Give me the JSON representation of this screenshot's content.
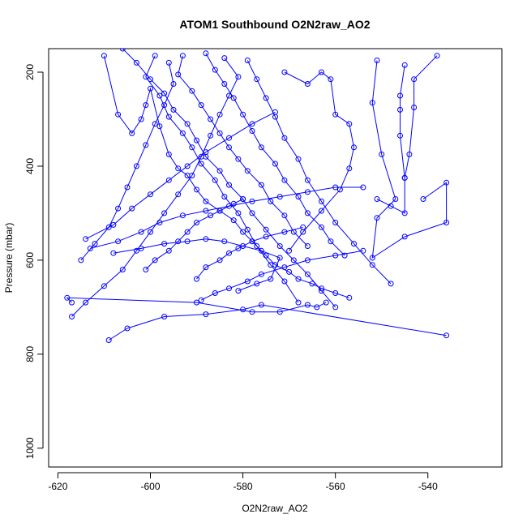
{
  "chart_data": {
    "type": "line",
    "title": "ATOM1 Southbound O2N2raw_AO2",
    "xlabel": "O2N2raw_AO2",
    "ylabel": "Pressure (mbar)",
    "xlim": [
      -622,
      -524
    ],
    "ylim": [
      1040,
      150
    ],
    "x_ticks": [
      -620,
      -600,
      -580,
      -560,
      -540
    ],
    "y_ticks": [
      200,
      400,
      600,
      800,
      1000
    ],
    "x_tick_labels": [
      "-620",
      "-600",
      "-580",
      "-560",
      "-540"
    ],
    "y_tick_labels": [
      "200",
      "400",
      "600",
      "800",
      "1000"
    ],
    "grid": false,
    "colors": {
      "series": "#0000ff",
      "axis": "#000000",
      "background": "#ffffff"
    },
    "series": [
      {
        "values": [
          [
            -610,
            165
          ],
          [
            -607,
            290
          ],
          [
            -604,
            330
          ],
          [
            -602,
            300
          ],
          [
            -601,
            270
          ],
          [
            -600,
            235
          ],
          [
            -598,
            315
          ],
          [
            -596,
            375
          ],
          [
            -594,
            405
          ],
          [
            -592,
            420
          ],
          [
            -590,
            450
          ],
          [
            -588,
            475
          ],
          [
            -585,
            495
          ],
          [
            -582,
            515
          ],
          [
            -580,
            540
          ],
          [
            -578,
            560
          ],
          [
            -575,
            590
          ],
          [
            -573,
            610
          ],
          [
            -570,
            625
          ],
          [
            -568,
            640
          ],
          [
            -565,
            650
          ],
          [
            -563,
            660
          ],
          [
            -560,
            670
          ],
          [
            -557,
            680
          ]
        ]
      },
      {
        "values": [
          [
            -606,
            150
          ],
          [
            -603,
            180
          ],
          [
            -600,
            215
          ],
          [
            -597,
            245
          ],
          [
            -595,
            280
          ],
          [
            -592,
            310
          ],
          [
            -590,
            345
          ],
          [
            -588,
            380
          ],
          [
            -585,
            410
          ],
          [
            -583,
            440
          ],
          [
            -580,
            470
          ],
          [
            -578,
            500
          ],
          [
            -575,
            535
          ],
          [
            -572,
            570
          ],
          [
            -569,
            600
          ],
          [
            -566,
            630
          ],
          [
            -563,
            665
          ],
          [
            -560,
            700
          ]
        ]
      },
      {
        "values": [
          [
            -599,
            165
          ],
          [
            -601,
            210
          ],
          [
            -598,
            250
          ],
          [
            -596,
            295
          ],
          [
            -593,
            330
          ],
          [
            -591,
            360
          ],
          [
            -589,
            395
          ],
          [
            -586,
            430
          ],
          [
            -584,
            465
          ],
          [
            -581,
            500
          ],
          [
            -579,
            535
          ],
          [
            -577,
            570
          ],
          [
            -574,
            610
          ],
          [
            -571,
            645
          ],
          [
            -568,
            690
          ]
        ]
      },
      {
        "values": [
          [
            -593,
            165
          ],
          [
            -594,
            205
          ],
          [
            -591,
            240
          ],
          [
            -589,
            270
          ],
          [
            -587,
            300
          ],
          [
            -585,
            330
          ],
          [
            -583,
            360
          ],
          [
            -581,
            385
          ],
          [
            -579,
            410
          ],
          [
            -576,
            440
          ],
          [
            -574,
            475
          ],
          [
            -571,
            505
          ],
          [
            -569,
            540
          ],
          [
            -566,
            570
          ]
        ]
      },
      {
        "values": [
          [
            -588,
            160
          ],
          [
            -586,
            195
          ],
          [
            -584,
            225
          ],
          [
            -582,
            255
          ],
          [
            -580,
            290
          ],
          [
            -578,
            325
          ],
          [
            -576,
            360
          ],
          [
            -573,
            395
          ],
          [
            -571,
            430
          ],
          [
            -568,
            465
          ],
          [
            -566,
            500
          ],
          [
            -563,
            530
          ],
          [
            -561,
            560
          ],
          [
            -558,
            590
          ]
        ]
      },
      {
        "values": [
          [
            -584,
            170
          ],
          [
            -581,
            210
          ],
          [
            -583,
            250
          ],
          [
            -585,
            290
          ],
          [
            -587,
            335
          ],
          [
            -589,
            380
          ],
          [
            -591,
            420
          ],
          [
            -594,
            460
          ],
          [
            -597,
            500
          ],
          [
            -600,
            540
          ],
          [
            -603,
            580
          ],
          [
            -606,
            620
          ],
          [
            -610,
            655
          ],
          [
            -614,
            690
          ],
          [
            -617,
            720
          ]
        ]
      },
      {
        "values": [
          [
            -596,
            180
          ],
          [
            -595,
            225
          ],
          [
            -597,
            270
          ],
          [
            -599,
            310
          ],
          [
            -601,
            355
          ],
          [
            -603,
            400
          ],
          [
            -605,
            445
          ],
          [
            -607,
            490
          ],
          [
            -609,
            530
          ],
          [
            -612,
            565
          ],
          [
            -615,
            600
          ]
        ]
      },
      {
        "values": [
          [
            -579,
            175
          ],
          [
            -577,
            215
          ],
          [
            -575,
            255
          ],
          [
            -573,
            295
          ],
          [
            -571,
            340
          ],
          [
            -568,
            385
          ],
          [
            -566,
            430
          ],
          [
            -563,
            475
          ],
          [
            -560,
            520
          ],
          [
            -556,
            565
          ],
          [
            -552,
            610
          ],
          [
            -548,
            650
          ]
        ]
      },
      {
        "values": [
          [
            -571,
            200
          ],
          [
            -566,
            225
          ],
          [
            -563,
            200
          ],
          [
            -561,
            215
          ],
          [
            -560,
            290
          ],
          [
            -557,
            310
          ],
          [
            -556,
            360
          ],
          [
            -557,
            405
          ],
          [
            -559,
            450
          ],
          [
            -563,
            495
          ],
          [
            -567,
            540
          ],
          [
            -570,
            580
          ]
        ]
      },
      {
        "values": [
          [
            -551,
            175
          ],
          [
            -552,
            265
          ],
          [
            -550,
            375
          ],
          [
            -547,
            470
          ],
          [
            -551,
            510
          ],
          [
            -552,
            595
          ],
          [
            -545,
            550
          ],
          [
            -536,
            520
          ],
          [
            -536,
            435
          ],
          [
            -541,
            470
          ]
        ]
      },
      {
        "values": [
          [
            -545,
            185
          ],
          [
            -546,
            250
          ],
          [
            -546,
            280
          ],
          [
            -546,
            335
          ],
          [
            -545,
            425
          ],
          [
            -545,
            500
          ],
          [
            -548,
            485
          ],
          [
            -551,
            470
          ]
        ]
      },
      {
        "values": [
          [
            -538,
            165
          ],
          [
            -543,
            215
          ],
          [
            -543,
            275
          ],
          [
            -544,
            375
          ],
          [
            -545,
            425
          ]
        ]
      },
      {
        "values": [
          [
            -617,
            690
          ],
          [
            -618,
            680
          ],
          [
            -590,
            690
          ],
          [
            -578,
            710
          ],
          [
            -572,
            710
          ],
          [
            -566,
            695
          ],
          [
            -564,
            700
          ],
          [
            -562,
            690
          ]
        ]
      },
      {
        "values": [
          [
            -609,
            770
          ],
          [
            -605,
            745
          ],
          [
            -597,
            720
          ],
          [
            -588,
            715
          ],
          [
            -580,
            705
          ],
          [
            -576,
            695
          ],
          [
            -536,
            760
          ]
        ]
      },
      {
        "values": [
          [
            -613,
            575
          ],
          [
            -607,
            560
          ],
          [
            -602,
            540
          ],
          [
            -598,
            520
          ],
          [
            -593,
            505
          ],
          [
            -588,
            495
          ],
          [
            -583,
            485
          ],
          [
            -578,
            475
          ],
          [
            -572,
            465
          ],
          [
            -566,
            455
          ],
          [
            -560,
            445
          ],
          [
            -554,
            445
          ]
        ]
      },
      {
        "values": [
          [
            -614,
            555
          ],
          [
            -608,
            525
          ],
          [
            -604,
            490
          ],
          [
            -600,
            460
          ],
          [
            -596,
            430
          ],
          [
            -592,
            400
          ],
          [
            -588,
            370
          ],
          [
            -583,
            340
          ],
          [
            -578,
            310
          ],
          [
            -573,
            285
          ]
        ]
      },
      {
        "values": [
          [
            -608,
            585
          ],
          [
            -602,
            575
          ],
          [
            -597,
            565
          ],
          [
            -592,
            560
          ],
          [
            -588,
            555
          ],
          [
            -584,
            560
          ],
          [
            -580,
            570
          ],
          [
            -576,
            580
          ],
          [
            -572,
            595
          ],
          [
            -574,
            640
          ],
          [
            -577,
            650
          ],
          [
            -581,
            665
          ]
        ]
      },
      {
        "values": [
          [
            -590,
            640
          ],
          [
            -588,
            615
          ],
          [
            -585,
            600
          ],
          [
            -583,
            585
          ],
          [
            -581,
            575
          ],
          [
            -578,
            560
          ],
          [
            -575,
            550
          ],
          [
            -571,
            540
          ],
          [
            -567,
            530
          ]
        ]
      },
      {
        "values": [
          [
            -601,
            620
          ],
          [
            -599,
            600
          ],
          [
            -596,
            580
          ],
          [
            -594,
            560
          ],
          [
            -592,
            540
          ],
          [
            -590,
            520
          ],
          [
            -587,
            505
          ],
          [
            -585,
            495
          ],
          [
            -582,
            480
          ],
          [
            -580,
            470
          ]
        ]
      },
      {
        "values": [
          [
            -589,
            685
          ],
          [
            -586,
            670
          ],
          [
            -583,
            660
          ],
          [
            -579,
            645
          ],
          [
            -576,
            630
          ],
          [
            -571,
            615
          ],
          [
            -566,
            600
          ],
          [
            -560,
            590
          ],
          [
            -554,
            580
          ]
        ]
      }
    ]
  }
}
